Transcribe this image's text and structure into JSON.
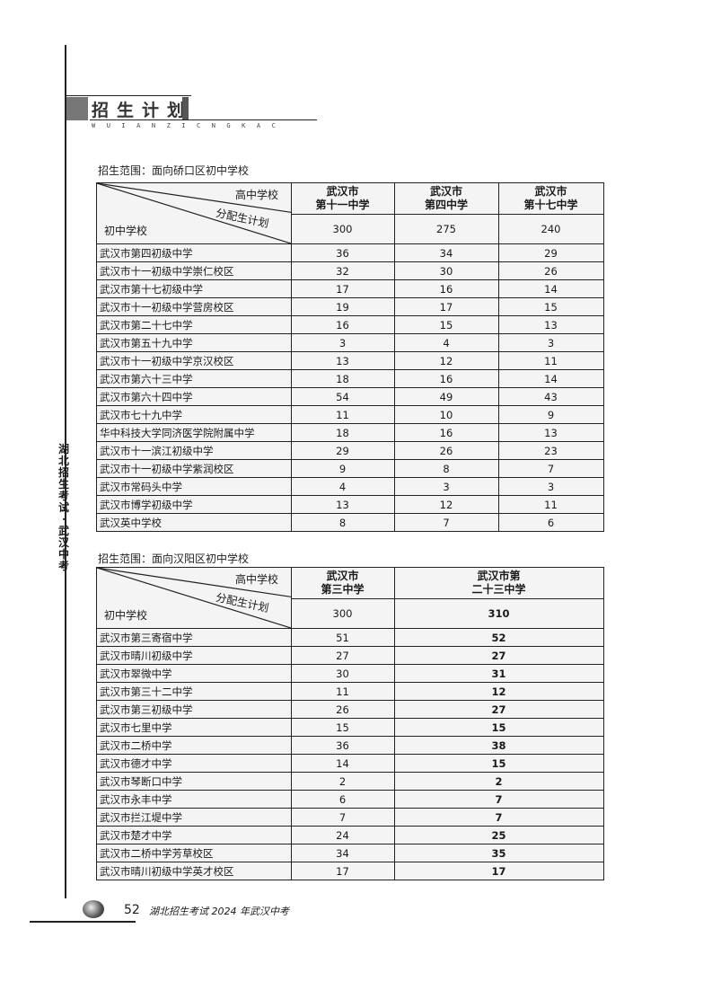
{
  "header": {
    "title": "招生计划",
    "subtitle": "WUIANZICNGKAC"
  },
  "side_text": "湖北招生考试·武汉中考",
  "tables": [
    {
      "caption": "招生范围：面向硚口区初中学校",
      "corner": {
        "top": "高中学校",
        "middle": "分配生计划",
        "bottom": "初中学校"
      },
      "columns": [
        {
          "name": "武汉市\n第十一中学",
          "plan": "300"
        },
        {
          "name": "武汉市\n第四中学",
          "plan": "275"
        },
        {
          "name": "武汉市\n第十七中学",
          "plan": "240"
        }
      ],
      "rows": [
        {
          "school": "武汉市第四初级中学",
          "values": [
            "36",
            "34",
            "29"
          ]
        },
        {
          "school": "武汉市十一初级中学崇仁校区",
          "values": [
            "32",
            "30",
            "26"
          ]
        },
        {
          "school": "武汉市第十七初级中学",
          "values": [
            "17",
            "16",
            "14"
          ]
        },
        {
          "school": "武汉市十一初级中学营房校区",
          "values": [
            "19",
            "17",
            "15"
          ]
        },
        {
          "school": "武汉市第二十七中学",
          "values": [
            "16",
            "15",
            "13"
          ]
        },
        {
          "school": "武汉市第五十九中学",
          "values": [
            "3",
            "4",
            "3"
          ]
        },
        {
          "school": "武汉市十一初级中学京汉校区",
          "values": [
            "13",
            "12",
            "11"
          ]
        },
        {
          "school": "武汉市第六十三中学",
          "values": [
            "18",
            "16",
            "14"
          ]
        },
        {
          "school": "武汉市第六十四中学",
          "values": [
            "54",
            "49",
            "43"
          ]
        },
        {
          "school": "武汉市七十九中学",
          "values": [
            "11",
            "10",
            "9"
          ]
        },
        {
          "school": "华中科技大学同济医学院附属中学",
          "values": [
            "18",
            "16",
            "13"
          ]
        },
        {
          "school": "武汉市十一滨江初级中学",
          "values": [
            "29",
            "26",
            "23"
          ]
        },
        {
          "school": "武汉市十一初级中学紫润校区",
          "values": [
            "9",
            "8",
            "7"
          ]
        },
        {
          "school": "武汉市常码头中学",
          "values": [
            "4",
            "3",
            "3"
          ]
        },
        {
          "school": "武汉市博学初级中学",
          "values": [
            "13",
            "12",
            "11"
          ]
        },
        {
          "school": "武汉英中学校",
          "values": [
            "8",
            "7",
            "6"
          ]
        }
      ]
    },
    {
      "caption": "招生范围：面向汉阳区初中学校",
      "corner": {
        "top": "高中学校",
        "middle": "分配生计划",
        "bottom": "初中学校"
      },
      "columns": [
        {
          "name": "武汉市\n第三中学",
          "plan": "300"
        },
        {
          "name": "武汉市第\n二十三中学",
          "plan": "310"
        }
      ],
      "rows": [
        {
          "school": "武汉市第三寄宿中学",
          "values": [
            "51",
            "52"
          ]
        },
        {
          "school": "武汉市晴川初级中学",
          "values": [
            "27",
            "27"
          ]
        },
        {
          "school": "武汉市翠微中学",
          "values": [
            "30",
            "31"
          ]
        },
        {
          "school": "武汉市第三十二中学",
          "values": [
            "11",
            "12"
          ]
        },
        {
          "school": "武汉市第三初级中学",
          "values": [
            "26",
            "27"
          ]
        },
        {
          "school": "武汉市七里中学",
          "values": [
            "15",
            "15"
          ]
        },
        {
          "school": "武汉市二桥中学",
          "values": [
            "36",
            "38"
          ]
        },
        {
          "school": "武汉市德才中学",
          "values": [
            "14",
            "15"
          ]
        },
        {
          "school": "武汉市琴断口中学",
          "values": [
            "2",
            "2"
          ]
        },
        {
          "school": "武汉市永丰中学",
          "values": [
            "6",
            "7"
          ]
        },
        {
          "school": "武汉市拦江堤中学",
          "values": [
            "7",
            "7"
          ]
        },
        {
          "school": "武汉市楚才中学",
          "values": [
            "24",
            "25"
          ]
        },
        {
          "school": "武汉市二桥中学芳草校区",
          "values": [
            "34",
            "35"
          ]
        },
        {
          "school": "武汉市晴川初级中学英才校区",
          "values": [
            "17",
            "17"
          ]
        }
      ]
    }
  ],
  "footer": {
    "page_number": "52",
    "publication": "湖北招生考试 2024 年武汉中考"
  }
}
